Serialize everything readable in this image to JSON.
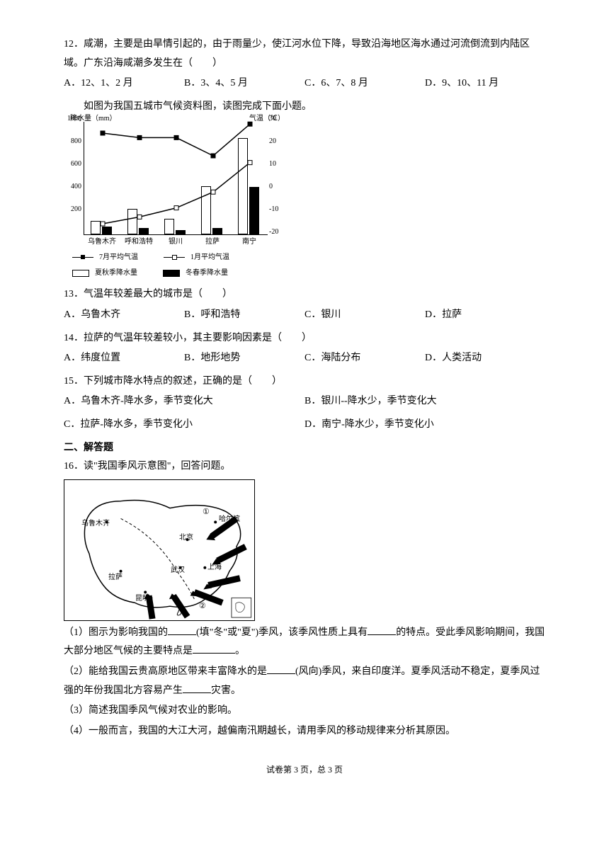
{
  "q12": {
    "text": "12．咸潮，主要是由旱情引起的，由于雨量少，使江河水位下降，导致沿海地区海水通过河流倒流到内陆区域。广东沿海咸潮多发生在（　　）",
    "options": {
      "a": "A．12、1、2 月",
      "b": "B．3、4、5 月",
      "c": "C．6、7、8 月",
      "d": "D．9、10、11 月"
    }
  },
  "instr1": "如图为我国五城市气候资料图，读图完成下面小题。",
  "climate_chart": {
    "type": "combo-bar-line",
    "left_axis": {
      "title": "降水量（mm）",
      "min": 0,
      "max": 1000,
      "step": 200,
      "ticks": [
        0,
        200,
        400,
        600,
        800,
        1000
      ]
    },
    "right_axis": {
      "title": "气温（℃）",
      "min": -20,
      "max": 30,
      "step": 10,
      "ticks": [
        -20,
        -10,
        0,
        10,
        20,
        30
      ]
    },
    "cities": [
      "乌鲁木齐",
      "呼和浩特",
      "银川",
      "拉萨",
      "南宁"
    ],
    "summer_autumn_precip": [
      120,
      230,
      140,
      430,
      850
    ],
    "winter_spring_precip": [
      70,
      60,
      40,
      60,
      420
    ],
    "july_temp": [
      25,
      23,
      23,
      15,
      29
    ],
    "jan_temp": [
      -15,
      -12,
      -8,
      -1,
      12
    ],
    "bar_colors": {
      "summer": "#ffffff",
      "winter": "#000000"
    },
    "legend": {
      "july": "7月平均气温",
      "jan": "1月平均气温",
      "summer": "夏秋季降水量",
      "winter": "冬春季降水量"
    }
  },
  "q13": {
    "text": "13．气温年较差最大的城市是（　　）",
    "options": {
      "a": "A．乌鲁木齐",
      "b": "B．呼和浩特",
      "c": "C．银川",
      "d": "D．拉萨"
    }
  },
  "q14": {
    "text": "14．拉萨的气温年较差较小，其主要影响因素是（　　）",
    "options": {
      "a": "A．纬度位置",
      "b": "B．地形地势",
      "c": "C．海陆分布",
      "d": "D．人类活动"
    }
  },
  "q15": {
    "text": "15．下列城市降水特点的叙述，正确的是（　　）",
    "options": {
      "a": "A．乌鲁木齐-降水多，季节变化大",
      "b": "B．银川--降水少，季节变化大",
      "c": "C．拉萨-降水多，季节变化小",
      "d": "D．南宁-降水少，季节变化小"
    }
  },
  "section2": "二、解答题",
  "q16": {
    "text": "16．读\"我国季风示意图\"，回答问题。",
    "map": {
      "cities": [
        "哈尔滨",
        "北京",
        "上海",
        "武汉",
        "昆明",
        "乌鲁木齐",
        "拉萨"
      ],
      "markers": [
        "①",
        "②"
      ],
      "arrow_color": "#000000",
      "outline_color": "#000000"
    },
    "sub1_a": "（1）图示为影响我国的",
    "sub1_b": "(填\"冬\"或\"夏\")季风，该季风性质上具有",
    "sub1_c": "的特点。受此季风影响期间，我国大部分地区气候的主要特点是",
    "sub1_d": "。",
    "sub2_a": "（2）能给我国云贵高原地区带来丰富降水的是",
    "sub2_b": "(风向)季风，来自印度洋。夏季风活动不稳定，夏季风过强的年份我国北方容易产生",
    "sub2_c": "灾害。",
    "sub3": "（3）简述我国季风气候对农业的影响。",
    "sub4": "（4）一般而言，我国的大江大河，越偏南汛期越长，请用季风的移动规律来分析其原因。"
  },
  "footer": "试卷第 3 页，总 3 页"
}
